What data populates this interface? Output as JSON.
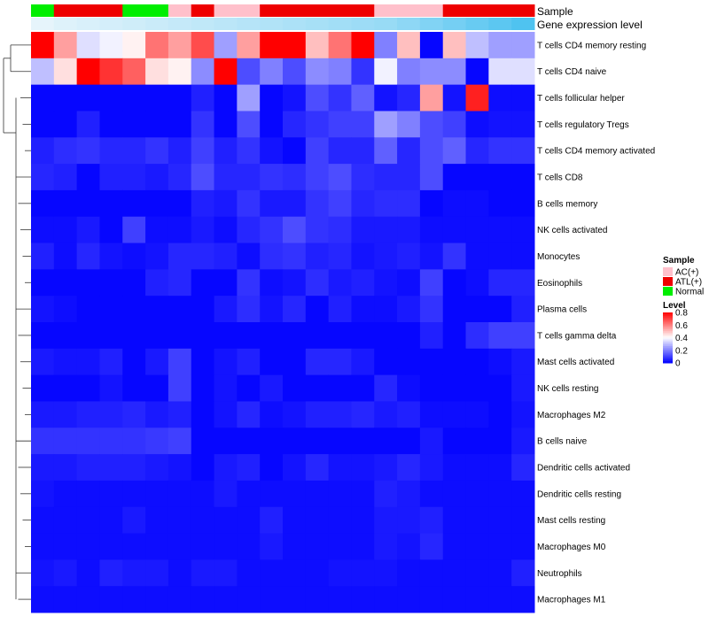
{
  "chart_data": {
    "type": "heatmap",
    "title": "",
    "annotation_labels": {
      "sample": "Sample",
      "expression": "Gene expression level"
    },
    "rows": [
      "T cells CD4 memory resting",
      "T cells CD4 naive",
      "T cells follicular helper",
      "T cells regulatory  Tregs",
      "T cells CD4 memory activated",
      "T cells CD8",
      "B cells memory",
      "NK cells activated",
      "Monocytes",
      "Eosinophils",
      "Plasma cells",
      "T cells gamma delta",
      "Mast cells activated",
      "NK cells resting",
      "Macrophages M2",
      "B cells naive",
      "Dendritic cells activated",
      "Dendritic cells resting",
      "Mast cells resting",
      "Macrophages M0",
      "Neutrophils",
      "Macrophages M1"
    ],
    "sample_groups": [
      "Normal",
      "ATL(+)",
      "ATL(+)",
      "ATL(+)",
      "Normal",
      "Normal",
      "AC(+)",
      "ATL(+)",
      "AC(+)",
      "AC(+)",
      "ATL(+)",
      "ATL(+)",
      "ATL(+)",
      "ATL(+)",
      "ATL(+)",
      "AC(+)",
      "AC(+)",
      "AC(+)",
      "ATL(+)",
      "ATL(+)",
      "ATL(+)",
      "ATL(+)"
    ],
    "expression_level": [
      0.05,
      0.08,
      0.1,
      0.12,
      0.14,
      0.16,
      0.18,
      0.2,
      0.22,
      0.24,
      0.26,
      0.28,
      0.3,
      0.32,
      0.34,
      0.36,
      0.4,
      0.45,
      0.5,
      0.55,
      0.6,
      0.65
    ],
    "values": [
      [
        0.8,
        0.55,
        0.35,
        0.38,
        0.42,
        0.62,
        0.55,
        0.68,
        0.25,
        0.55,
        0.8,
        0.8,
        0.5,
        0.62,
        0.8,
        0.2,
        0.5,
        0.01,
        0.5,
        0.3,
        0.25,
        0.25
      ],
      [
        0.3,
        0.45,
        0.8,
        0.72,
        0.65,
        0.45,
        0.42,
        0.22,
        0.8,
        0.12,
        0.2,
        0.12,
        0.22,
        0.2,
        0.08,
        0.38,
        0.2,
        0.22,
        0.22,
        0.01,
        0.35,
        0.35
      ],
      [
        0.01,
        0.01,
        0.01,
        0.01,
        0.01,
        0.01,
        0.01,
        0.05,
        0.01,
        0.25,
        0.01,
        0.03,
        0.12,
        0.08,
        0.15,
        0.03,
        0.06,
        0.55,
        0.03,
        0.75,
        0.02,
        0.02
      ],
      [
        0.01,
        0.01,
        0.05,
        0.01,
        0.01,
        0.01,
        0.01,
        0.08,
        0.01,
        0.12,
        0.01,
        0.06,
        0.08,
        0.1,
        0.1,
        0.25,
        0.2,
        0.12,
        0.1,
        0.02,
        0.03,
        0.03
      ],
      [
        0.05,
        0.07,
        0.08,
        0.06,
        0.06,
        0.08,
        0.05,
        0.1,
        0.05,
        0.08,
        0.03,
        0.01,
        0.1,
        0.06,
        0.06,
        0.15,
        0.06,
        0.12,
        0.15,
        0.06,
        0.08,
        0.08
      ],
      [
        0.06,
        0.05,
        0.01,
        0.05,
        0.05,
        0.04,
        0.06,
        0.12,
        0.06,
        0.06,
        0.08,
        0.07,
        0.1,
        0.12,
        0.07,
        0.06,
        0.06,
        0.12,
        0.01,
        0.01,
        0.01,
        0.01
      ],
      [
        0.01,
        0.01,
        0.01,
        0.01,
        0.01,
        0.01,
        0.01,
        0.05,
        0.04,
        0.08,
        0.04,
        0.04,
        0.08,
        0.1,
        0.06,
        0.07,
        0.07,
        0.01,
        0.02,
        0.02,
        0.01,
        0.01
      ],
      [
        0.02,
        0.02,
        0.04,
        0.01,
        0.1,
        0.02,
        0.02,
        0.04,
        0.02,
        0.06,
        0.08,
        0.12,
        0.08,
        0.07,
        0.04,
        0.04,
        0.04,
        0.02,
        0.02,
        0.02,
        0.02,
        0.02
      ],
      [
        0.05,
        0.02,
        0.06,
        0.03,
        0.02,
        0.03,
        0.06,
        0.06,
        0.05,
        0.02,
        0.07,
        0.08,
        0.05,
        0.06,
        0.03,
        0.04,
        0.05,
        0.03,
        0.08,
        0.02,
        0.02,
        0.02
      ],
      [
        0.01,
        0.01,
        0.01,
        0.01,
        0.01,
        0.05,
        0.06,
        0.01,
        0.01,
        0.08,
        0.02,
        0.03,
        0.07,
        0.04,
        0.05,
        0.03,
        0.02,
        0.1,
        0.01,
        0.02,
        0.06,
        0.06
      ],
      [
        0.03,
        0.02,
        0.01,
        0.01,
        0.01,
        0.01,
        0.01,
        0.01,
        0.04,
        0.07,
        0.03,
        0.06,
        0.01,
        0.05,
        0.02,
        0.02,
        0.04,
        0.08,
        0.01,
        0.01,
        0.01,
        0.05
      ],
      [
        0.01,
        0.01,
        0.01,
        0.01,
        0.01,
        0.01,
        0.01,
        0.01,
        0.01,
        0.01,
        0.01,
        0.01,
        0.01,
        0.01,
        0.01,
        0.01,
        0.01,
        0.05,
        0.01,
        0.07,
        0.1,
        0.1
      ],
      [
        0.04,
        0.03,
        0.03,
        0.05,
        0.01,
        0.04,
        0.1,
        0.01,
        0.03,
        0.05,
        0.01,
        0.01,
        0.06,
        0.06,
        0.04,
        0.01,
        0.01,
        0.01,
        0.01,
        0.01,
        0.02,
        0.04
      ],
      [
        0.01,
        0.01,
        0.01,
        0.03,
        0.01,
        0.01,
        0.1,
        0.01,
        0.03,
        0.01,
        0.04,
        0.01,
        0.01,
        0.01,
        0.01,
        0.06,
        0.02,
        0.01,
        0.01,
        0.01,
        0.01,
        0.04
      ],
      [
        0.04,
        0.04,
        0.05,
        0.05,
        0.06,
        0.04,
        0.05,
        0.01,
        0.03,
        0.06,
        0.02,
        0.03,
        0.05,
        0.05,
        0.06,
        0.04,
        0.05,
        0.02,
        0.02,
        0.02,
        0.01,
        0.03
      ],
      [
        0.08,
        0.08,
        0.08,
        0.08,
        0.08,
        0.09,
        0.1,
        0.01,
        0.01,
        0.01,
        0.01,
        0.01,
        0.01,
        0.01,
        0.01,
        0.01,
        0.01,
        0.04,
        0.01,
        0.01,
        0.01,
        0.04
      ],
      [
        0.04,
        0.04,
        0.05,
        0.05,
        0.05,
        0.04,
        0.03,
        0.01,
        0.04,
        0.05,
        0.01,
        0.03,
        0.06,
        0.03,
        0.03,
        0.04,
        0.06,
        0.04,
        0.02,
        0.02,
        0.02,
        0.06
      ],
      [
        0.03,
        0.02,
        0.02,
        0.02,
        0.02,
        0.02,
        0.02,
        0.02,
        0.04,
        0.02,
        0.02,
        0.02,
        0.02,
        0.02,
        0.02,
        0.05,
        0.04,
        0.02,
        0.02,
        0.02,
        0.02,
        0.02
      ],
      [
        0.02,
        0.02,
        0.02,
        0.02,
        0.04,
        0.02,
        0.02,
        0.02,
        0.02,
        0.02,
        0.05,
        0.02,
        0.02,
        0.02,
        0.02,
        0.04,
        0.04,
        0.05,
        0.02,
        0.02,
        0.02,
        0.02
      ],
      [
        0.02,
        0.02,
        0.02,
        0.02,
        0.02,
        0.02,
        0.02,
        0.02,
        0.02,
        0.02,
        0.04,
        0.02,
        0.02,
        0.02,
        0.02,
        0.04,
        0.03,
        0.06,
        0.02,
        0.02,
        0.02,
        0.02
      ],
      [
        0.03,
        0.04,
        0.02,
        0.05,
        0.04,
        0.04,
        0.02,
        0.04,
        0.04,
        0.02,
        0.02,
        0.02,
        0.02,
        0.03,
        0.03,
        0.03,
        0.02,
        0.02,
        0.02,
        0.02,
        0.02,
        0.05
      ],
      [
        0.02,
        0.02,
        0.02,
        0.02,
        0.02,
        0.02,
        0.02,
        0.02,
        0.02,
        0.02,
        0.02,
        0.02,
        0.02,
        0.02,
        0.02,
        0.02,
        0.02,
        0.02,
        0.02,
        0.02,
        0.02,
        0.02
      ]
    ],
    "legend": {
      "sample_title": "Sample",
      "sample_items": [
        {
          "label": "AC(+)",
          "color": "#ffc0cb"
        },
        {
          "label": "ATL(+)",
          "color": "#ee0000"
        },
        {
          "label": "Normal",
          "color": "#00ee00"
        }
      ],
      "level_title": "Level",
      "level_ticks": [
        {
          "value": 0.8,
          "label": "0.8"
        },
        {
          "value": 0.6,
          "label": "0.6"
        },
        {
          "value": 0.4,
          "label": "0.4"
        },
        {
          "value": 0.2,
          "label": "0.2"
        },
        {
          "value": 0,
          "label": "0"
        }
      ],
      "level_range": [
        0,
        0.8
      ]
    },
    "colors": {
      "low": "#0000ff",
      "mid": "#ffffff",
      "high": "#ff0000"
    },
    "expression_colors": {
      "low": "#e6f4fb",
      "high": "#4fc3f0"
    },
    "dendrogram": "rows clustered; top two rows form a separate branch"
  }
}
